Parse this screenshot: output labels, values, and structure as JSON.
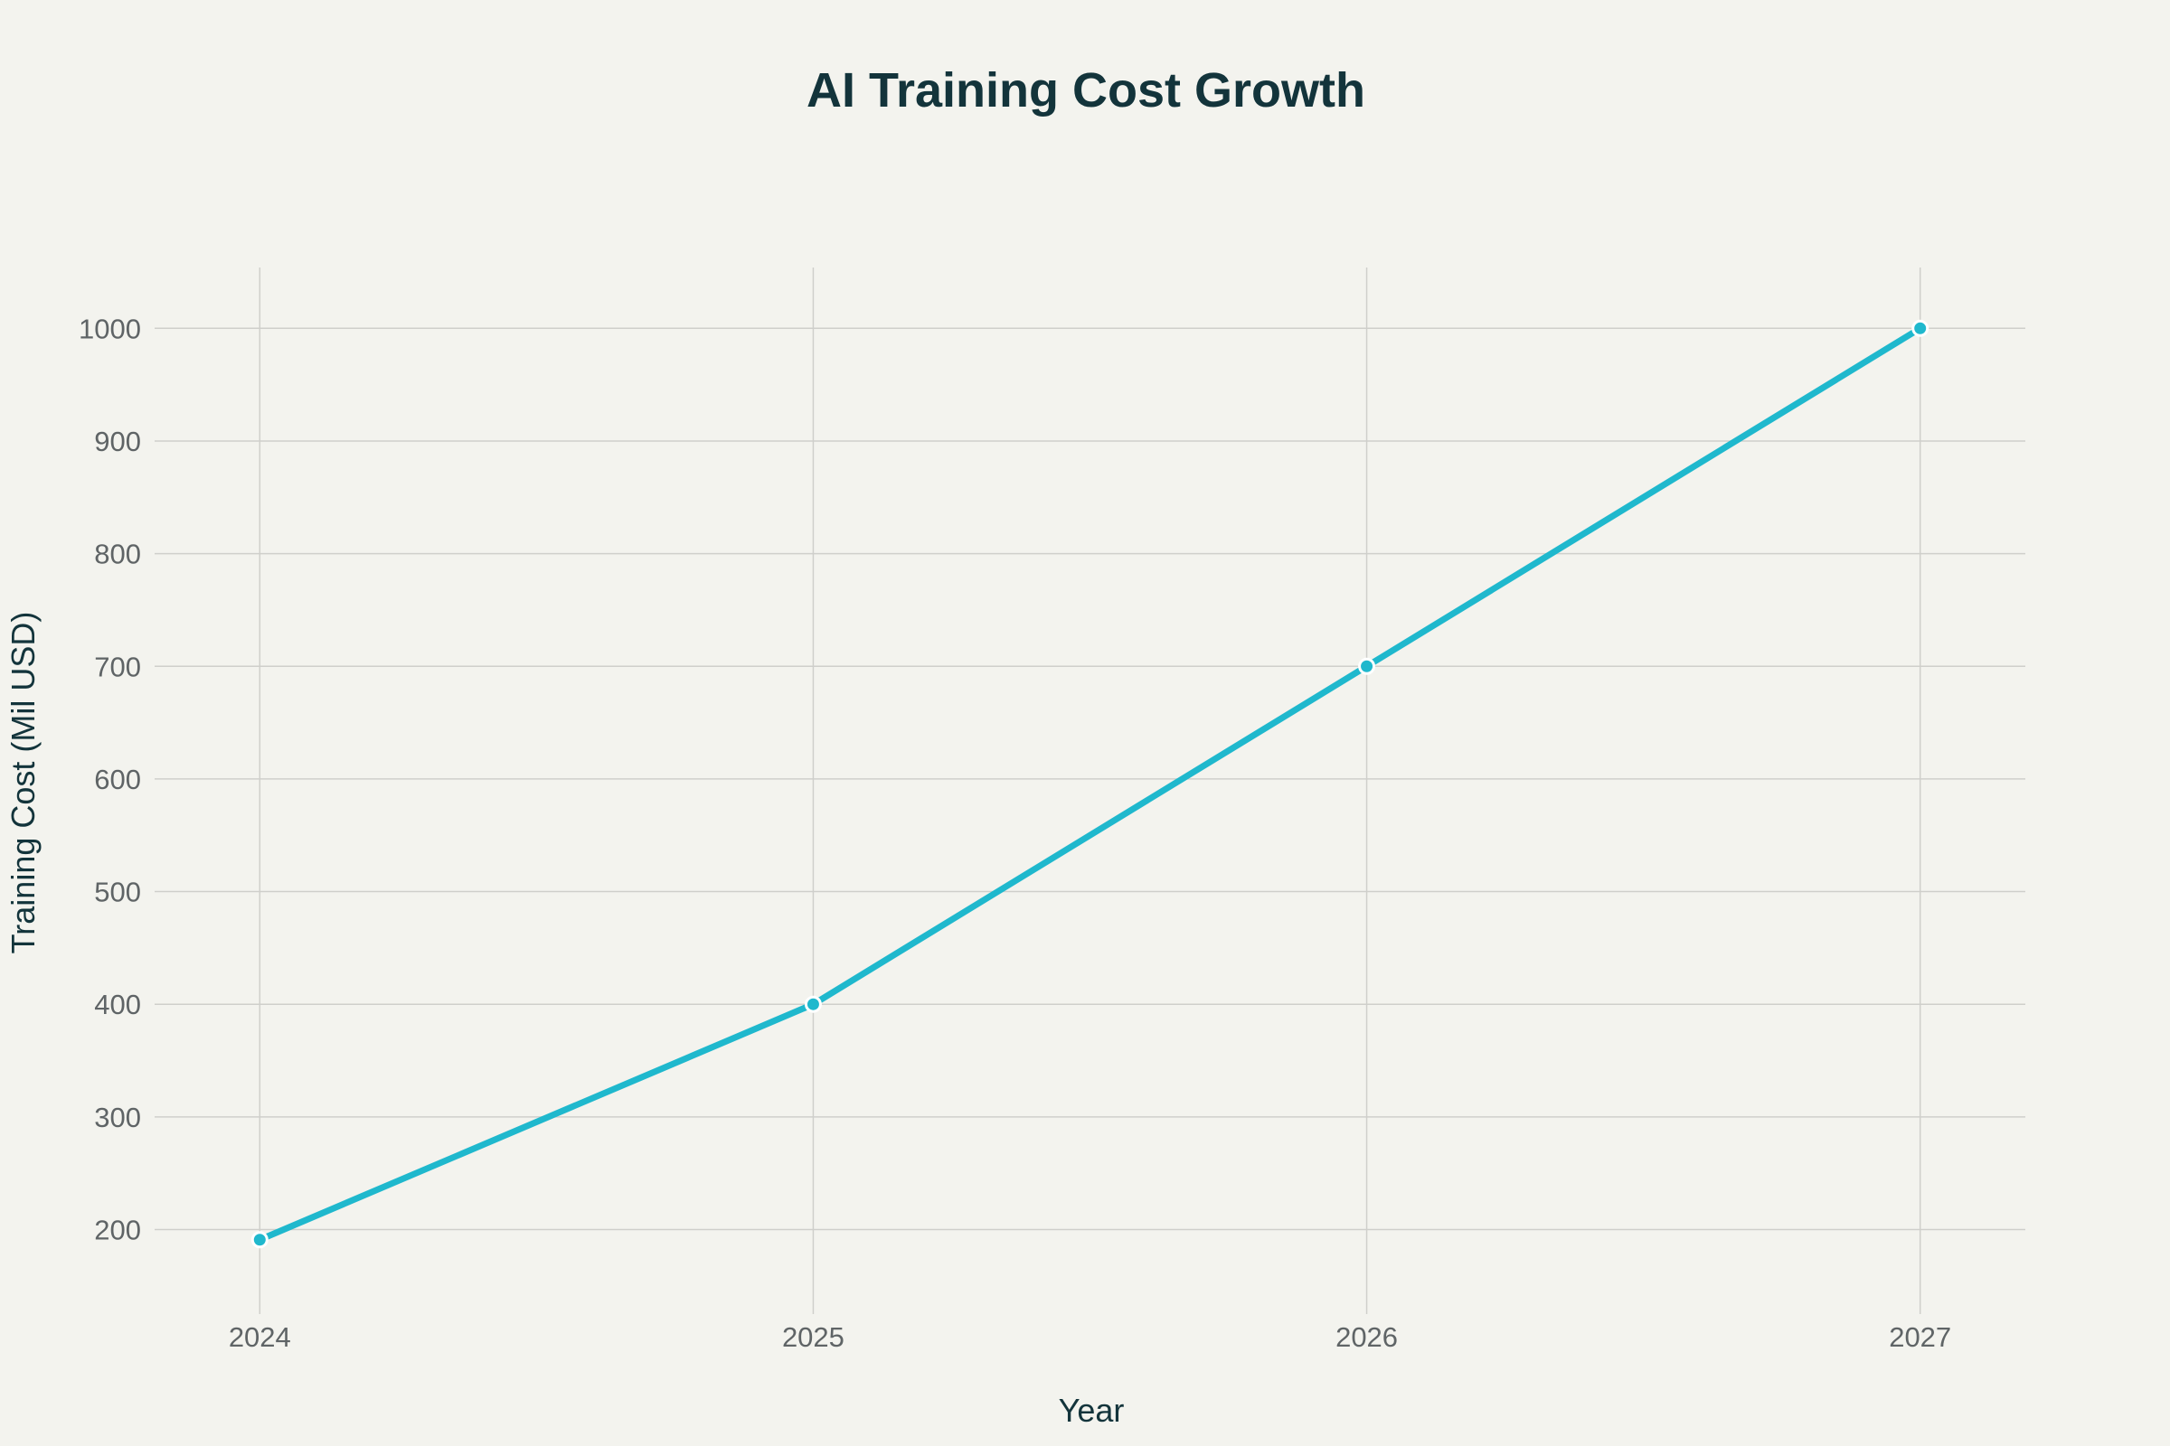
{
  "chart_data": {
    "type": "line",
    "title": "AI Training Cost Growth",
    "xlabel": "Year",
    "ylabel": "Training Cost (Mil USD)",
    "x": [
      2024,
      2025,
      2026,
      2027
    ],
    "series": [
      {
        "values": [
          191,
          400,
          700,
          1000
        ],
        "color": "#1FB8CD"
      }
    ],
    "xticks": [
      "2024",
      "2025",
      "2026",
      "2027"
    ],
    "yticks": [
      200,
      300,
      400,
      500,
      600,
      700,
      800,
      900,
      1000
    ],
    "xlim": [
      2023.81,
      2027.19
    ],
    "ylim": [
      125,
      1054
    ],
    "grid": true,
    "legend": "none",
    "markers": true
  }
}
